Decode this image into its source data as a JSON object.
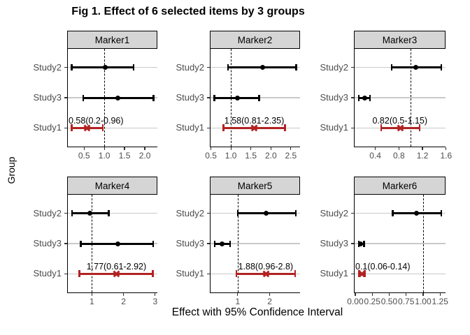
{
  "title": "Fig 1. Effect of 6 selected items by 3 groups",
  "axes": {
    "x_label": "Effect with 95% Confidence Interval",
    "y_label": "Group"
  },
  "colors": {
    "highlight": "#B22222",
    "normal": "#000000",
    "strip_fill": "#D5D5D5",
    "strip_border": "#000000",
    "grid": "#C9C9C9",
    "axis_text": "#4D4D4D",
    "annotation_text": "#000000"
  },
  "reference_line": {
    "value": 1.0,
    "style": "dashed"
  },
  "chart_data": {
    "type": "forest",
    "layout": "2 rows x 3 columns of panels",
    "rows_top_to_bottom": [
      "Study2",
      "Study3",
      "Study1"
    ],
    "panels": [
      {
        "label": "Marker1",
        "xlim": [
          0.1,
          2.31
        ],
        "tick_labels": [
          "0.5",
          "1.0",
          "1.5",
          "2.0"
        ],
        "tick_values": [
          0.5,
          1.0,
          1.5,
          2.0
        ],
        "rows": [
          {
            "study": "Study2",
            "est": 1.02,
            "lo": 0.2,
            "hi": 1.72,
            "style": "normal",
            "marker": "circle"
          },
          {
            "study": "Study3",
            "est": 1.33,
            "lo": 0.48,
            "hi": 2.21,
            "style": "normal",
            "marker": "circle"
          },
          {
            "study": "Study1",
            "est": 0.58,
            "lo": 0.2,
            "hi": 0.96,
            "style": "highlight",
            "marker": "x",
            "annotation": "0.58(0.2-0.96)"
          }
        ]
      },
      {
        "label": "Marker2",
        "xlim": [
          0.49,
          2.73
        ],
        "tick_labels": [
          "0.5",
          "1.0",
          "1.5",
          "2.0",
          "2.5"
        ],
        "tick_values": [
          0.5,
          1.0,
          1.5,
          2.0,
          2.5
        ],
        "rows": [
          {
            "study": "Study2",
            "est": 1.8,
            "lo": 0.93,
            "hi": 2.63,
            "style": "normal",
            "marker": "circle"
          },
          {
            "study": "Study3",
            "est": 1.16,
            "lo": 0.59,
            "hi": 1.71,
            "style": "normal",
            "marker": "circle"
          },
          {
            "study": "Study1",
            "est": 1.58,
            "lo": 0.81,
            "hi": 2.35,
            "style": "highlight",
            "marker": "x",
            "annotation": "1.58(0.81-2.35)"
          }
        ]
      },
      {
        "label": "Marker3",
        "xlim": [
          0.05,
          1.59
        ],
        "tick_labels": [
          "0.4",
          "0.8",
          "1.2",
          "1.6"
        ],
        "tick_values": [
          0.4,
          0.8,
          1.2,
          1.6
        ],
        "rows": [
          {
            "study": "Study2",
            "est": 1.09,
            "lo": 0.68,
            "hi": 1.52,
            "style": "normal",
            "marker": "circle"
          },
          {
            "study": "Study3",
            "est": 0.22,
            "lo": 0.12,
            "hi": 0.31,
            "style": "normal",
            "marker": "circle"
          },
          {
            "study": "Study1",
            "est": 0.82,
            "lo": 0.5,
            "hi": 1.15,
            "style": "highlight",
            "marker": "x",
            "annotation": "0.82(0.5-1.15)"
          }
        ]
      },
      {
        "label": "Marker4",
        "xlim": [
          0.24,
          3.07
        ],
        "tick_labels": [
          "1",
          "2",
          "3"
        ],
        "tick_values": [
          1,
          2,
          3
        ],
        "rows": [
          {
            "study": "Study2",
            "est": 0.94,
            "lo": 0.37,
            "hi": 1.54,
            "style": "normal",
            "marker": "circle"
          },
          {
            "study": "Study3",
            "est": 1.81,
            "lo": 0.65,
            "hi": 2.94,
            "style": "normal",
            "marker": "circle"
          },
          {
            "study": "Study1",
            "est": 1.77,
            "lo": 0.61,
            "hi": 2.92,
            "style": "highlight",
            "marker": "x",
            "annotation": "1.77(0.61-2.92)"
          }
        ]
      },
      {
        "label": "Marker5",
        "xlim": [
          0.15,
          2.95
        ],
        "tick_labels": [
          "1",
          "2"
        ],
        "tick_values": [
          1,
          2
        ],
        "rows": [
          {
            "study": "Study2",
            "est": 1.88,
            "lo": 1.0,
            "hi": 2.82,
            "style": "normal",
            "marker": "circle"
          },
          {
            "study": "Study3",
            "est": 0.52,
            "lo": 0.28,
            "hi": 0.76,
            "style": "normal",
            "marker": "circle"
          },
          {
            "study": "Study1",
            "est": 1.88,
            "lo": 0.96,
            "hi": 2.8,
            "style": "highlight",
            "marker": "x",
            "annotation": "1.88(0.96-2.8)"
          }
        ]
      },
      {
        "label": "Marker6",
        "xlim": [
          -0.01,
          1.33
        ],
        "tick_labels": [
          "0.00",
          "0.25",
          "0.50",
          "0.75",
          "1.00",
          "1.25"
        ],
        "tick_values": [
          0.0,
          0.25,
          0.5,
          0.75,
          1.0,
          1.25
        ],
        "rows": [
          {
            "study": "Study2",
            "est": 0.9,
            "lo": 0.55,
            "hi": 1.27,
            "style": "normal",
            "marker": "circle"
          },
          {
            "study": "Study3",
            "est": 0.08,
            "lo": 0.05,
            "hi": 0.13,
            "style": "normal",
            "marker": "circle"
          },
          {
            "study": "Study1",
            "est": 0.1,
            "lo": 0.06,
            "hi": 0.14,
            "style": "highlight",
            "marker": "x",
            "annotation": "0.1(0.06-0.14)"
          }
        ]
      }
    ]
  }
}
